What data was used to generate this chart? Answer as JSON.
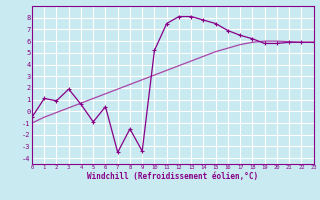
{
  "xlabel": "Windchill (Refroidissement éolien,°C)",
  "bg_color": "#c8eaf0",
  "grid_color": "#ffffff",
  "line_color": "#880088",
  "trend_color": "#aa44aa",
  "x_data": [
    0,
    1,
    2,
    3,
    4,
    5,
    6,
    7,
    8,
    9,
    10,
    11,
    12,
    13,
    14,
    15,
    16,
    17,
    18,
    19,
    20,
    21,
    22,
    23
  ],
  "y_jagged": [
    -0.5,
    1.1,
    0.9,
    1.9,
    0.6,
    -0.9,
    0.4,
    -3.5,
    -1.5,
    -3.4,
    5.2,
    7.5,
    8.1,
    8.1,
    7.8,
    7.5,
    6.9,
    6.5,
    6.2,
    5.8,
    5.8,
    5.9,
    5.9,
    5.9
  ],
  "y_trend": [
    -1.0,
    -0.5,
    -0.1,
    0.3,
    0.7,
    1.1,
    1.5,
    1.9,
    2.3,
    2.7,
    3.1,
    3.5,
    3.9,
    4.3,
    4.7,
    5.1,
    5.4,
    5.7,
    5.9,
    6.0,
    6.0,
    5.95,
    5.9,
    5.9
  ],
  "xlim": [
    0,
    23
  ],
  "ylim": [
    -4.5,
    9.0
  ],
  "yticks": [
    -4,
    -3,
    -2,
    -1,
    0,
    1,
    2,
    3,
    4,
    5,
    6,
    7,
    8
  ],
  "xticks": [
    0,
    1,
    2,
    3,
    4,
    5,
    6,
    7,
    8,
    9,
    10,
    11,
    12,
    13,
    14,
    15,
    16,
    17,
    18,
    19,
    20,
    21,
    22,
    23
  ]
}
